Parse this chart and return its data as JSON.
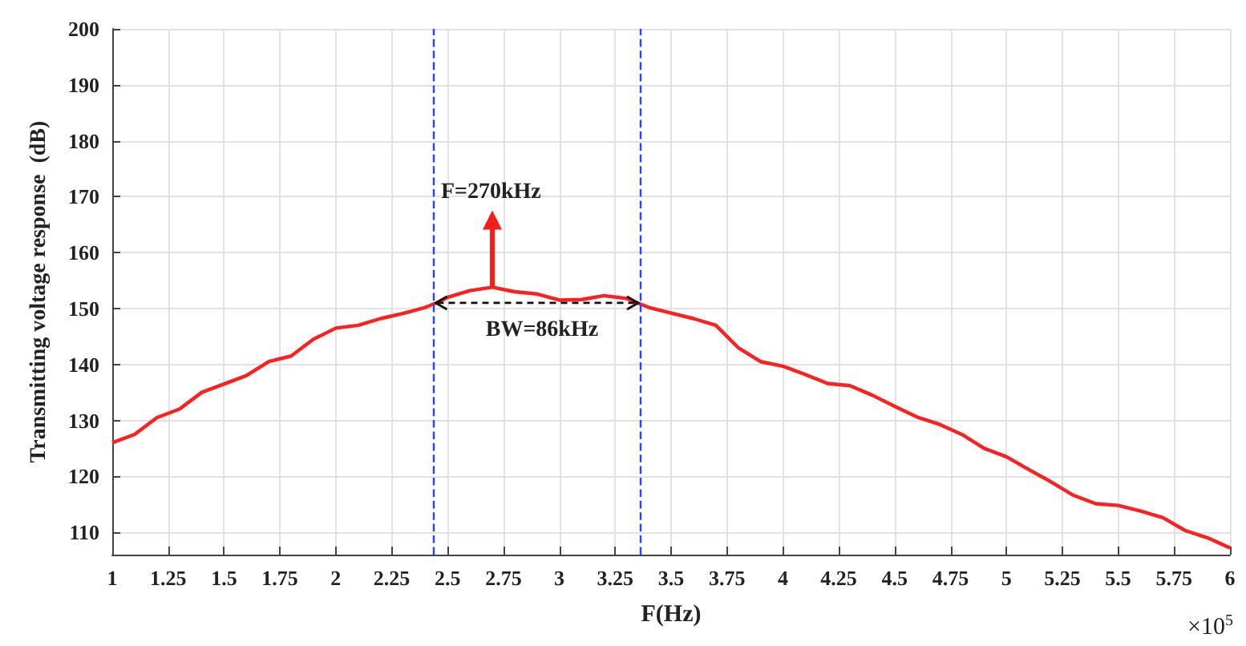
{
  "chart_data": {
    "type": "line",
    "xlabel": "F(Hz)",
    "ylabel": "Transmitting voltage response  (dB)",
    "x": [
      1,
      1.1,
      1.2,
      1.3,
      1.4,
      1.5,
      1.6,
      1.7,
      1.8,
      1.9,
      2,
      2.1,
      2.2,
      2.3,
      2.4,
      2.45,
      2.5,
      2.6,
      2.7,
      2.8,
      2.9,
      3,
      3.1,
      3.2,
      3.3,
      3.35,
      3.4,
      3.5,
      3.6,
      3.7,
      3.8,
      3.9,
      4,
      4.1,
      4.2,
      4.3,
      4.4,
      4.5,
      4.6,
      4.7,
      4.8,
      4.9,
      5,
      5.1,
      5.2,
      5.3,
      5.4,
      5.5,
      5.6,
      5.7,
      5.8,
      5.9,
      6
    ],
    "series": [
      {
        "color": "#ff2020",
        "values": [
          126,
          127.5,
          130.5,
          132,
          135,
          136.5,
          138,
          140.5,
          141.5,
          144.5,
          146.5,
          147,
          148.2,
          149.1,
          150.2,
          151,
          152,
          153.2,
          153.8,
          153,
          152.6,
          151.5,
          151.6,
          152.3,
          151.8,
          151,
          150.2,
          149.2,
          148.2,
          147,
          143,
          140.5,
          139.7,
          138.2,
          136.6,
          136.2,
          134.5,
          132.5,
          130.6,
          129.3,
          127.5,
          125,
          123.5,
          121.2,
          119,
          116.6,
          115.1,
          114.8,
          113.8,
          112.6,
          110.3,
          109,
          107.2
        ]
      }
    ],
    "xlim": [
      1,
      6
    ],
    "xticks": [
      1,
      1.25,
      1.5,
      1.75,
      2,
      2.25,
      2.5,
      2.75,
      3,
      3.25,
      3.5,
      3.75,
      4,
      4.25,
      4.5,
      4.75,
      5,
      5.25,
      5.5,
      5.75,
      6
    ],
    "ylim": [
      106,
      200
    ],
    "yticks": [
      110,
      120,
      130,
      140,
      150,
      160,
      170,
      180,
      190,
      200
    ],
    "grid": true,
    "marker": "none",
    "line_style": "solid",
    "ref_lines": [
      {
        "axis": "x",
        "value": 2.44,
        "color": "#2244ff",
        "line_style": "dashed"
      },
      {
        "axis": "x",
        "value": 3.36,
        "color": "#2244ff",
        "line_style": "dashed"
      }
    ],
    "annotations": [
      "F=270kHz",
      {
        "text": "BW=86kHz",
        "x": 2.9,
        "y": 151
      },
      "×10$^{5}$"
    ]
  }
}
